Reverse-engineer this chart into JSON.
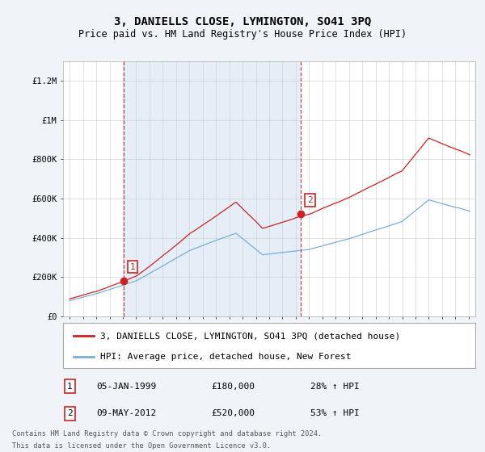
{
  "title": "3, DANIELLS CLOSE, LYMINGTON, SO41 3PQ",
  "subtitle": "Price paid vs. HM Land Registry's House Price Index (HPI)",
  "ylim": [
    0,
    1300000
  ],
  "yticks": [
    0,
    200000,
    400000,
    600000,
    800000,
    1000000,
    1200000
  ],
  "ytick_labels": [
    "£0",
    "£200K",
    "£400K",
    "£600K",
    "£800K",
    "£1M",
    "£1.2M"
  ],
  "background_color": "#e8eef4",
  "plot_bg_color": "#ffffff",
  "shade_color": "#dae8f4",
  "grid_color": "#cccccc",
  "red_color": "#cc2222",
  "blue_color": "#7aafd4",
  "sale1_year": 1999.04,
  "sale1_price": 180000,
  "sale2_year": 2012.36,
  "sale2_price": 520000,
  "sale1_date": "05-JAN-1999",
  "sale1_hpi": "28% ↑ HPI",
  "sale2_date": "09-MAY-2012",
  "sale2_hpi": "53% ↑ HPI",
  "legend_label1": "3, DANIELLS CLOSE, LYMINGTON, SO41 3PQ (detached house)",
  "legend_label2": "HPI: Average price, detached house, New Forest",
  "footer_line1": "Contains HM Land Registry data © Crown copyright and database right 2024.",
  "footer_line2": "This data is licensed under the Open Government Licence v3.0.",
  "xstart": 1995,
  "xend": 2025
}
